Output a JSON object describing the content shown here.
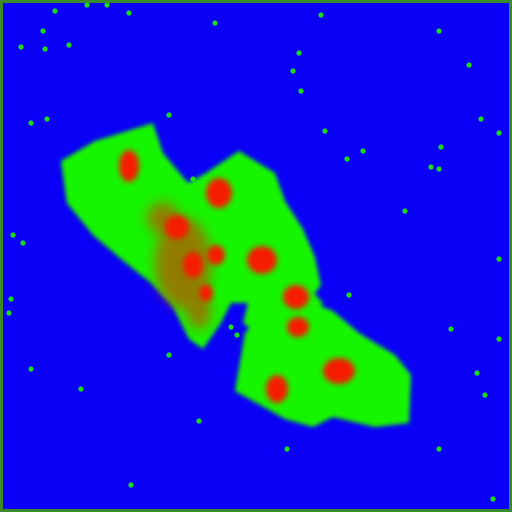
{
  "image": {
    "kind": "segmentation-mask",
    "colors": {
      "background": "#0a00f5",
      "region": "#19f500",
      "highlight": "#f51a00",
      "border": "#3a8a2a"
    }
  }
}
